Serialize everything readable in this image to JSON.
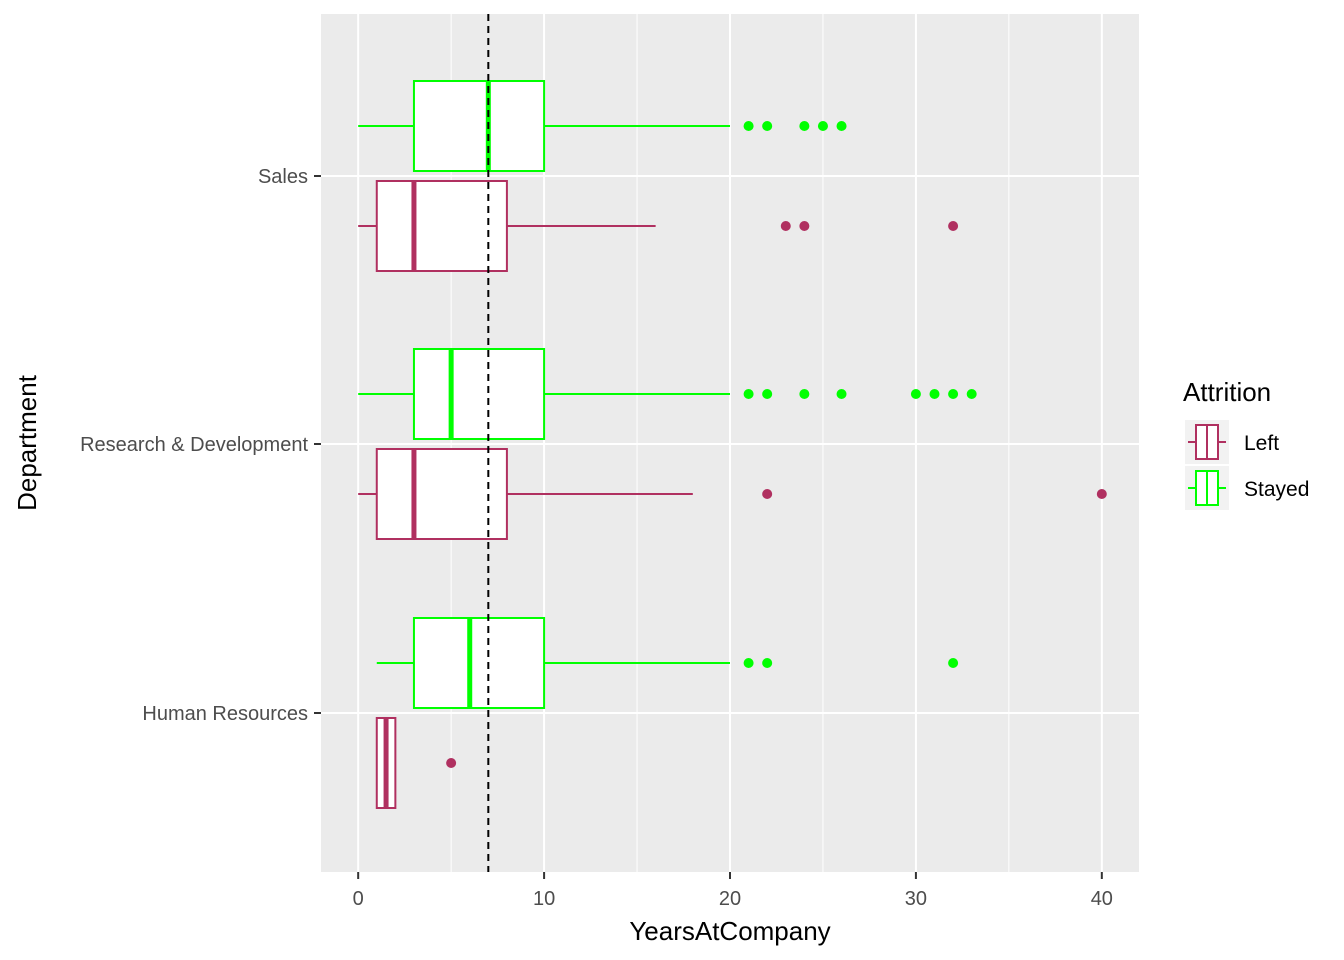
{
  "chart_data": {
    "type": "boxplot",
    "orientation": "horizontal",
    "xlabel": "YearsAtCompany",
    "ylabel": "Department",
    "xlim": [
      -2,
      42
    ],
    "xticks": [
      0,
      10,
      20,
      30,
      40
    ],
    "categories": [
      "Sales",
      "Research & Development",
      "Human Resources"
    ],
    "grid": true,
    "reference_line": {
      "x": 7,
      "style": "dashed",
      "color": "#000000"
    },
    "legend": {
      "title": "Attrition",
      "placement": "right",
      "entries": [
        {
          "name": "Left",
          "color": "#B03060"
        },
        {
          "name": "Stayed",
          "color": "#00FF00"
        }
      ]
    },
    "series": [
      {
        "name": "Stayed",
        "color": "#00FF00",
        "boxes": [
          {
            "category": "Sales",
            "whisker_low": 0,
            "q1": 3,
            "median": 7,
            "q3": 10,
            "whisker_high": 20,
            "outliers": [
              21,
              22,
              24,
              25,
              26
            ]
          },
          {
            "category": "Research & Development",
            "whisker_low": 0,
            "q1": 3,
            "median": 5,
            "q3": 10,
            "whisker_high": 20,
            "outliers": [
              21,
              22,
              24,
              26,
              30,
              31,
              32,
              33
            ]
          },
          {
            "category": "Human Resources",
            "whisker_low": 1,
            "q1": 3,
            "median": 6,
            "q3": 10,
            "whisker_high": 20,
            "outliers": [
              21,
              22,
              32
            ]
          }
        ]
      },
      {
        "name": "Left",
        "color": "#B03060",
        "boxes": [
          {
            "category": "Sales",
            "whisker_low": 0,
            "q1": 1,
            "median": 3,
            "q3": 8,
            "whisker_high": 16,
            "outliers": [
              23,
              24,
              32
            ]
          },
          {
            "category": "Research & Development",
            "whisker_low": 0,
            "q1": 1,
            "median": 3,
            "q3": 8,
            "whisker_high": 18,
            "outliers": [
              22,
              40
            ]
          },
          {
            "category": "Human Resources",
            "whisker_low": 1,
            "q1": 1,
            "median": 1.5,
            "q3": 2,
            "whisker_high": 2,
            "outliers": [
              5
            ]
          }
        ]
      }
    ]
  }
}
